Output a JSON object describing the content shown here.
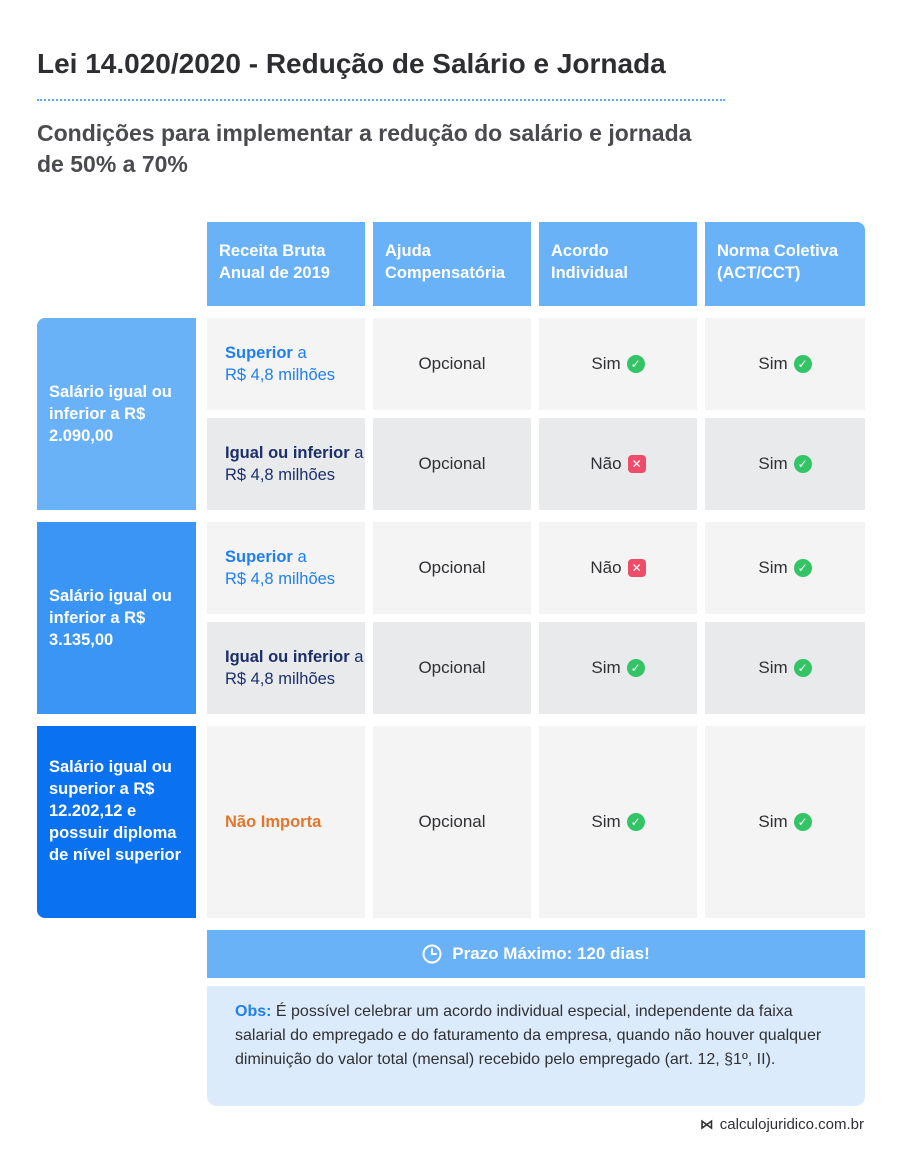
{
  "title": "Lei 14.020/2020 - Redução de Salário e Jornada",
  "subtitle": "Condições para implementar a redução do salário e jornada de 50% a 70%",
  "headers": [
    "Receita Bruta Anual de 2019",
    "Ajuda Compensatória",
    "Acordo Individual",
    "Norma Coletiva (ACT/CCT)"
  ],
  "groups": [
    {
      "label": "Salário igual ou inferior a R$ 2.090,00"
    },
    {
      "label": "Salário igual ou inferior a R$ 3.135,00"
    },
    {
      "label": "Salário igual ou superior a R$ 12.202,12 e possuir diploma de nível superior"
    }
  ],
  "revenue": {
    "superior_bold": "Superior",
    "superior_rest": "a",
    "amount": "R$ 4,8 milhões",
    "igual_bold": "Igual ou inferior",
    "igual_rest": "a",
    "nao_importa": "Não Importa"
  },
  "values": {
    "opcional": "Opcional",
    "sim": "Sim",
    "nao": "Não"
  },
  "icons": {
    "sim": "check-circle-icon",
    "nao": "x-square-icon",
    "prazo": "clock-icon"
  },
  "rows": [
    {
      "ajuda": "Opcional",
      "acordo": "Sim",
      "norma": "Sim"
    },
    {
      "ajuda": "Opcional",
      "acordo": "Não",
      "norma": "Sim"
    },
    {
      "ajuda": "Opcional",
      "acordo": "Não",
      "norma": "Sim"
    },
    {
      "ajuda": "Opcional",
      "acordo": "Sim",
      "norma": "Sim"
    },
    {
      "ajuda": "Opcional",
      "acordo": "Sim",
      "norma": "Sim"
    }
  ],
  "prazo": "Prazo Máximo: 120 dias!",
  "obs": {
    "label": "Obs:",
    "text": "É possível celebrar um acordo individual especial, independente da faixa salarial do empregado e do faturamento da empresa, quando não houver qualquer diminuição do valor total (mensal) recebido pelo empregado (art. 12, §1º, II)."
  },
  "footer": {
    "logo": "⋈",
    "site": "calculojuridico.com.br"
  },
  "colors": {
    "header_blue": "#6ab2f7",
    "group2_blue": "#3a95f4",
    "group3_blue": "#0a71f0",
    "link_blue": "#1f7ff0",
    "navy": "#1c2f6b",
    "orange": "#e4762c",
    "check_green": "#33c466",
    "cross_red": "#ee4d6a"
  }
}
